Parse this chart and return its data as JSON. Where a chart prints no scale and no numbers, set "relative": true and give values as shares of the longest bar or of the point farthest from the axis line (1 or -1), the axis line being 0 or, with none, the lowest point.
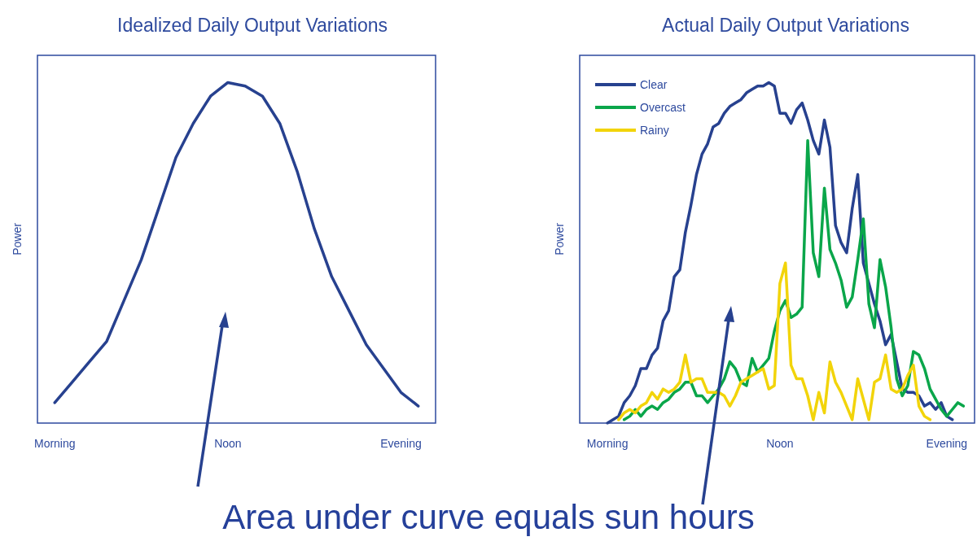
{
  "chart_data": [
    {
      "type": "line",
      "title": "Idealized Daily Output Variations",
      "ylabel": "Power",
      "relative": true,
      "categories": [
        null,
        "Morning",
        null,
        null,
        null,
        null,
        null,
        null,
        null,
        null,
        null,
        "Noon",
        null,
        null,
        null,
        null,
        null,
        null,
        null,
        null,
        null,
        "Evening",
        null,
        null
      ],
      "series": [
        {
          "color": "#27418f",
          "values": [
            null,
            0.06,
            0.12,
            0.18,
            0.24,
            0.36,
            0.48,
            0.63,
            0.78,
            0.88,
            0.96,
            1.0,
            0.99,
            0.96,
            0.88,
            0.74,
            0.57,
            0.43,
            0.33,
            0.23,
            0.16,
            0.09,
            0.05,
            null
          ]
        }
      ],
      "annotations": [
        "Area under curve equals sun hours"
      ]
    },
    {
      "type": "line",
      "title": "Actual Daily Output Variations",
      "ylabel": "Power",
      "relative": true,
      "legend": "top left",
      "categories": [
        null,
        null,
        null,
        null,
        null,
        "Morning",
        null,
        null,
        null,
        null,
        null,
        null,
        null,
        null,
        null,
        null,
        null,
        null,
        null,
        null,
        null,
        null,
        null,
        null,
        null,
        null,
        null,
        null,
        null,
        null,
        null,
        null,
        null,
        null,
        null,
        null,
        "Noon",
        null,
        null,
        null,
        null,
        null,
        null,
        null,
        null,
        null,
        null,
        null,
        null,
        null,
        null,
        null,
        null,
        null,
        null,
        null,
        null,
        null,
        null,
        null,
        null,
        null,
        null,
        null,
        null,
        null,
        "Evening",
        null,
        null,
        null,
        null,
        null
      ],
      "series": [
        {
          "name": "Clear",
          "color": "#27418f",
          "values": [
            null,
            null,
            null,
            null,
            null,
            0.0,
            0.01,
            0.02,
            0.06,
            0.08,
            0.11,
            0.16,
            0.16,
            0.2,
            0.22,
            0.3,
            0.33,
            0.43,
            0.45,
            0.56,
            0.64,
            0.73,
            0.79,
            0.82,
            0.87,
            0.88,
            0.91,
            0.93,
            0.94,
            0.95,
            0.97,
            0.98,
            0.99,
            0.99,
            1.0,
            0.99,
            0.91,
            0.91,
            0.88,
            0.92,
            0.94,
            0.89,
            0.83,
            0.79,
            0.89,
            0.81,
            0.58,
            0.53,
            0.5,
            0.63,
            0.73,
            0.47,
            0.41,
            0.35,
            0.3,
            0.23,
            0.26,
            0.18,
            0.1,
            0.09,
            0.09,
            0.08,
            0.05,
            0.06,
            0.04,
            0.06,
            0.02,
            0.01,
            null,
            null,
            null,
            null
          ]
        },
        {
          "name": "Overcast",
          "color": "#0aa64a",
          "values": [
            null,
            null,
            null,
            null,
            null,
            null,
            null,
            null,
            0.01,
            0.02,
            0.04,
            0.02,
            0.04,
            0.05,
            0.04,
            0.06,
            0.07,
            0.09,
            0.1,
            0.12,
            0.12,
            0.08,
            0.08,
            0.06,
            0.08,
            0.1,
            0.13,
            0.18,
            0.16,
            0.12,
            0.11,
            0.19,
            0.15,
            0.17,
            0.19,
            0.27,
            0.33,
            0.36,
            0.31,
            0.32,
            0.34,
            0.83,
            0.5,
            0.43,
            0.69,
            0.51,
            0.47,
            0.42,
            0.34,
            0.37,
            0.48,
            0.6,
            0.35,
            0.28,
            0.48,
            0.4,
            0.28,
            0.13,
            0.08,
            0.11,
            0.21,
            0.2,
            0.16,
            0.1,
            0.07,
            0.04,
            0.02,
            0.04,
            0.06,
            0.05,
            null,
            null
          ]
        },
        {
          "name": "Rainy",
          "color": "#f2d40a",
          "values": [
            null,
            null,
            null,
            null,
            null,
            null,
            null,
            0.01,
            0.03,
            0.04,
            0.03,
            0.05,
            0.06,
            0.09,
            0.07,
            0.1,
            0.09,
            0.1,
            0.12,
            0.2,
            0.12,
            0.13,
            0.13,
            0.09,
            0.09,
            0.09,
            0.08,
            0.05,
            0.08,
            0.12,
            0.13,
            0.14,
            0.15,
            0.16,
            0.1,
            0.11,
            0.41,
            0.47,
            0.17,
            0.13,
            0.13,
            0.08,
            0.01,
            0.09,
            0.03,
            0.18,
            0.12,
            0.09,
            0.05,
            0.01,
            0.13,
            0.07,
            0.01,
            0.12,
            0.13,
            0.2,
            0.1,
            0.09,
            0.1,
            0.14,
            0.17,
            0.05,
            0.02,
            0.01,
            null,
            null,
            null,
            null,
            null,
            null,
            null,
            null
          ]
        }
      ]
    }
  ]
}
